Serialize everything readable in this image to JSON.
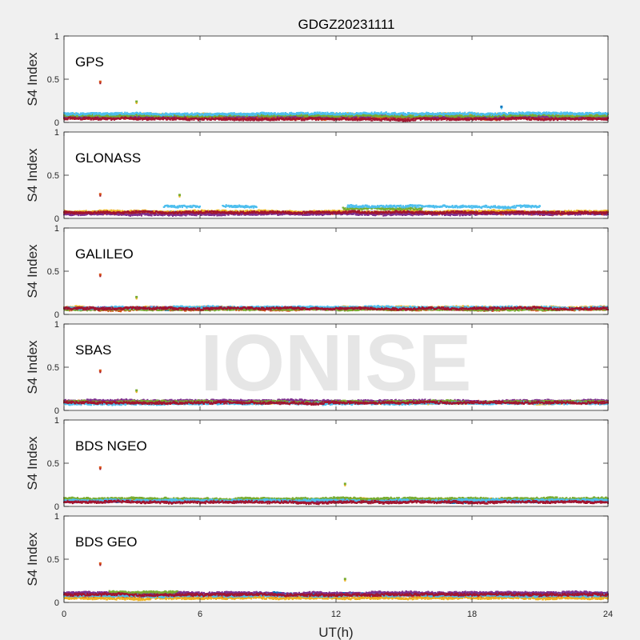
{
  "chart_data": {
    "type": "scatter",
    "title": "GDGZ20231111",
    "xlabel": "UT(h)",
    "ylabel": "S4 Index",
    "watermark": "IONISE",
    "xlim": [
      0,
      24
    ],
    "ylim": [
      0,
      1
    ],
    "xticks": [
      0,
      6,
      12,
      18,
      24
    ],
    "yticks": [
      0,
      0.5,
      1
    ],
    "grid": false,
    "legend": "none",
    "series_colors": [
      "#0072bd",
      "#d95319",
      "#edb120",
      "#7e2f8e",
      "#77ac30",
      "#4dbeee",
      "#a2142f"
    ],
    "panels": [
      {
        "label": "GPS",
        "baseline_s4": [
          0.04,
          0.14
        ],
        "series": [
          {
            "segments": [
              [
                0,
                24
              ]
            ],
            "level": 0.06
          },
          {
            "segments": [
              [
                0,
                24
              ]
            ],
            "level": 0.05
          },
          {
            "segments": [
              [
                0,
                24
              ]
            ],
            "level": 0.09
          },
          {
            "segments": [
              [
                0,
                24
              ]
            ],
            "level": 0.07
          },
          {
            "segments": [
              [
                0,
                24
              ]
            ],
            "level": 0.08
          },
          {
            "segments": [
              [
                0,
                24
              ]
            ],
            "level": 0.1
          },
          {
            "segments": [
              [
                0,
                24
              ]
            ],
            "level": 0.04
          }
        ],
        "spikes": [
          {
            "x": 1.6,
            "y": 0.47
          },
          {
            "x": 3.2,
            "y": 0.24
          },
          {
            "x": 19.3,
            "y": 0.18
          }
        ]
      },
      {
        "label": "GLONASS",
        "baseline_s4": [
          0.04,
          0.18
        ],
        "series": [
          {
            "segments": [
              [
                0,
                5
              ],
              [
                6.5,
                12
              ],
              [
                13,
                24
              ]
            ],
            "level": 0.07
          },
          {
            "segments": [
              [
                0,
                24
              ]
            ],
            "level": 0.06
          },
          {
            "segments": [
              [
                0,
                24
              ]
            ],
            "level": 0.08
          },
          {
            "segments": [
              [
                0,
                24
              ]
            ],
            "level": 0.05
          },
          {
            "segments": [
              [
                12.3,
                15.8
              ]
            ],
            "level": 0.11
          },
          {
            "segments": [
              [
                4.4,
                6
              ],
              [
                7,
                8.5
              ],
              [
                12.5,
                21
              ]
            ],
            "level": 0.14
          },
          {
            "segments": [
              [
                0,
                24
              ]
            ],
            "level": 0.07
          }
        ],
        "spikes": [
          {
            "x": 1.6,
            "y": 0.28
          },
          {
            "x": 5.1,
            "y": 0.27
          }
        ]
      },
      {
        "label": "GALILEO",
        "baseline_s4": [
          0.04,
          0.13
        ],
        "series": [
          {
            "segments": [
              [
                0,
                24
              ]
            ],
            "level": 0.07
          },
          {
            "segments": [
              [
                0,
                24
              ]
            ],
            "level": 0.06
          },
          {
            "segments": [
              [
                0,
                24
              ]
            ],
            "level": 0.08
          },
          {
            "segments": [
              [
                0,
                24
              ]
            ],
            "level": 0.07
          },
          {
            "segments": [
              [
                0,
                24
              ]
            ],
            "level": 0.06
          },
          {
            "segments": [
              [
                0,
                24
              ]
            ],
            "level": 0.08
          },
          {
            "segments": [
              [
                0,
                24
              ]
            ],
            "level": 0.07
          }
        ],
        "spikes": [
          {
            "x": 1.6,
            "y": 0.46
          },
          {
            "x": 3.2,
            "y": 0.2
          }
        ]
      },
      {
        "label": "SBAS",
        "baseline_s4": [
          0.06,
          0.14
        ],
        "series": [
          {
            "segments": [
              [
                0,
                24
              ]
            ],
            "level": 0.09
          },
          {
            "segments": [
              [
                0,
                24
              ]
            ],
            "level": 0.1
          },
          {
            "segments": [
              [
                0,
                24
              ]
            ],
            "level": 0.09
          },
          {
            "segments": [
              [
                0,
                24
              ]
            ],
            "level": 0.11
          },
          {
            "segments": [
              [
                0,
                24
              ]
            ],
            "level": 0.1
          },
          {
            "segments": [
              [
                0,
                24
              ]
            ],
            "level": 0.08
          },
          {
            "segments": [
              [
                0,
                24
              ]
            ],
            "level": 0.09
          }
        ],
        "spikes": [
          {
            "x": 1.6,
            "y": 0.46
          },
          {
            "x": 3.2,
            "y": 0.23
          }
        ]
      },
      {
        "label": "BDS NGEO",
        "baseline_s4": [
          0.04,
          0.13
        ],
        "series": [
          {
            "segments": [
              [
                0,
                24
              ]
            ],
            "level": 0.06
          },
          {
            "segments": [
              [
                0,
                24
              ]
            ],
            "level": 0.07
          },
          {
            "segments": [
              [
                0,
                24
              ]
            ],
            "level": 0.08
          },
          {
            "segments": [
              [
                0,
                24
              ]
            ],
            "level": 0.06
          },
          {
            "segments": [
              [
                0,
                24
              ]
            ],
            "level": 0.09
          },
          {
            "segments": [
              [
                0,
                24
              ]
            ],
            "level": 0.07
          },
          {
            "segments": [
              [
                0,
                24
              ]
            ],
            "level": 0.05
          }
        ],
        "spikes": [
          {
            "x": 1.6,
            "y": 0.45
          },
          {
            "x": 12.4,
            "y": 0.26
          }
        ]
      },
      {
        "label": "BDS GEO",
        "baseline_s4": [
          0.04,
          0.13
        ],
        "series": [
          {
            "segments": [
              [
                0,
                24
              ]
            ],
            "level": 0.1
          },
          {
            "segments": [
              [
                0,
                24
              ]
            ],
            "level": 0.07
          },
          {
            "segments": [
              [
                0,
                24
              ]
            ],
            "level": 0.05
          },
          {
            "segments": [
              [
                0,
                24
              ]
            ],
            "level": 0.11
          },
          {
            "segments": [
              [
                2,
                5
              ]
            ],
            "level": 0.12
          },
          {
            "segments": [
              [
                0,
                24
              ]
            ],
            "level": 0.08
          },
          {
            "segments": [
              [
                0,
                24
              ]
            ],
            "level": 0.09
          }
        ],
        "spikes": [
          {
            "x": 1.6,
            "y": 0.45
          },
          {
            "x": 12.4,
            "y": 0.27
          }
        ]
      }
    ]
  }
}
